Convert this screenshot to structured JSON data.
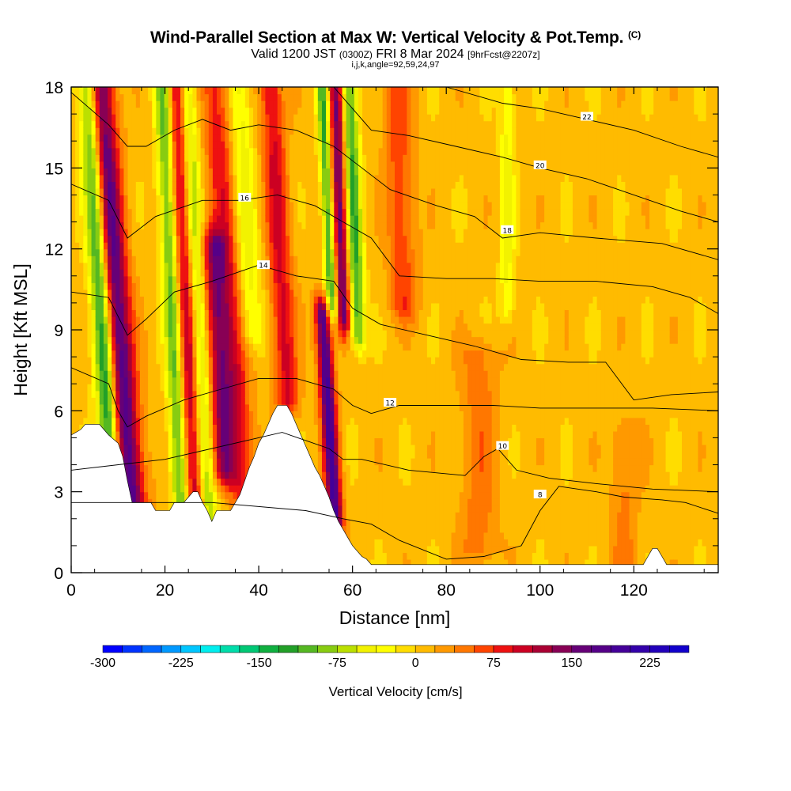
{
  "header": {
    "title": "Wind-Parallel Section at Max W: Vertical Velocity & Pot.Temp.",
    "copyright": "(C)",
    "valid_prefix": "Valid 1200 JST",
    "valid_utc": "(0300Z)",
    "valid_date": "FRI 8 Mar 2024",
    "forecast_info": "[9hrFcst@2207z]",
    "section_params": "i,j,k,angle=92,59,24,97"
  },
  "chart_data": {
    "type": "heatmap",
    "title": "Wind-Parallel Section at Max W: Vertical Velocity & Pot.Temp.",
    "xlabel": "Distance [nm]",
    "ylabel": "Height [Kft MSL]",
    "xlim": [
      0,
      138
    ],
    "ylim": [
      0,
      18
    ],
    "x_ticks": [
      "0",
      "20",
      "40",
      "60",
      "80",
      "100",
      "120"
    ],
    "y_ticks": [
      "0",
      "3",
      "6",
      "9",
      "12",
      "15",
      "18"
    ],
    "colorbar": {
      "title": "Vertical Velocity [cm/s]",
      "min": -300,
      "max": 262.5,
      "step": 18.75,
      "tick_values": [
        -300,
        -225,
        -150,
        -75,
        0,
        75,
        150,
        225
      ],
      "tick_labels": [
        "-300",
        "-225",
        "-150",
        "-75",
        "0",
        "75",
        "150",
        "225"
      ],
      "colors": [
        "#0000ff",
        "#0033ff",
        "#0066ff",
        "#0099ff",
        "#00c6ff",
        "#00eeee",
        "#00ddaa",
        "#00c875",
        "#10b040",
        "#22a028",
        "#55b822",
        "#88cc11",
        "#bbe000",
        "#f2f200",
        "#ffff00",
        "#ffdd00",
        "#ffbb00",
        "#ff9900",
        "#ff7700",
        "#ff4400",
        "#ee1111",
        "#cc0022",
        "#aa0033",
        "#880055",
        "#660077",
        "#550088",
        "#440099",
        "#3300aa",
        "#2200bb",
        "#1100cc"
      ]
    },
    "terrain_kft": [
      [
        0,
        5.1
      ],
      [
        1,
        5.2
      ],
      [
        2,
        5.3
      ],
      [
        3,
        5.5
      ],
      [
        6,
        5.5
      ],
      [
        8,
        5.1
      ],
      [
        10,
        4.8
      ],
      [
        11,
        4.3
      ],
      [
        12,
        3.4
      ],
      [
        13,
        2.6
      ],
      [
        17,
        2.6
      ],
      [
        18,
        2.3
      ],
      [
        21,
        2.3
      ],
      [
        22,
        2.6
      ],
      [
        24,
        2.6
      ],
      [
        25,
        2.8
      ],
      [
        26,
        3.0
      ],
      [
        27,
        3.0
      ],
      [
        28,
        2.6
      ],
      [
        29,
        2.3
      ],
      [
        30,
        1.9
      ],
      [
        31,
        2.3
      ],
      [
        34,
        2.3
      ],
      [
        35,
        2.6
      ],
      [
        36,
        2.9
      ],
      [
        37,
        3.4
      ],
      [
        38,
        3.9
      ],
      [
        39,
        4.3
      ],
      [
        40,
        4.8
      ],
      [
        41,
        5.1
      ],
      [
        42,
        5.5
      ],
      [
        43,
        5.9
      ],
      [
        44,
        6.2
      ],
      [
        46,
        6.2
      ],
      [
        47,
        5.9
      ],
      [
        48,
        5.5
      ],
      [
        49,
        5.1
      ],
      [
        50,
        4.7
      ],
      [
        51,
        4.3
      ],
      [
        52,
        3.9
      ],
      [
        53,
        3.6
      ],
      [
        54,
        3.2
      ],
      [
        55,
        2.8
      ],
      [
        56,
        2.3
      ],
      [
        57,
        1.9
      ],
      [
        58,
        1.6
      ],
      [
        59,
        1.3
      ],
      [
        60,
        1.0
      ],
      [
        61,
        0.8
      ],
      [
        62,
        0.6
      ],
      [
        63,
        0.5
      ],
      [
        64,
        0.3
      ],
      [
        85,
        0.3
      ],
      [
        95,
        0.3
      ],
      [
        122,
        0.3
      ],
      [
        123,
        0.6
      ],
      [
        124,
        0.9
      ],
      [
        125,
        0.9
      ],
      [
        126,
        0.6
      ],
      [
        127,
        0.3
      ],
      [
        138,
        0.3
      ]
    ],
    "updrafts": [
      {
        "x": 14,
        "peak_cms": 180,
        "width_nm": 3.0,
        "tilt": -0.45,
        "zmin": 2.0,
        "zmax": 18
      },
      {
        "x": 27,
        "peak_cms": 110,
        "width_nm": 2.0,
        "tilt": -0.25,
        "zmin": 2.0,
        "zmax": 18
      },
      {
        "x": 34,
        "peak_cms": 120,
        "width_nm": 2.5,
        "tilt": -0.3,
        "zmin": 4.0,
        "zmax": 12
      },
      {
        "x": 38,
        "peak_cms": 80,
        "width_nm": 3.0,
        "tilt": -0.4,
        "zmin": 3.0,
        "zmax": 18
      },
      {
        "x": 48,
        "peak_cms": 90,
        "width_nm": 2.5,
        "tilt": -0.3,
        "zmin": 6.5,
        "zmax": 18
      },
      {
        "x": 57,
        "peak_cms": 190,
        "width_nm": 1.6,
        "tilt": -0.35,
        "zmin": 2.0,
        "zmax": 9.5
      },
      {
        "x": 60,
        "peak_cms": 150,
        "width_nm": 1.4,
        "tilt": -0.2,
        "zmin": 9.5,
        "zmax": 18
      },
      {
        "x": 73,
        "peak_cms": 60,
        "width_nm": 3.0,
        "tilt": -0.2,
        "zmin": 10.0,
        "zmax": 18
      },
      {
        "x": 87,
        "peak_cms": 40,
        "width_nm": 4.0,
        "tilt": 0.0,
        "zmin": 1.0,
        "zmax": 8
      },
      {
        "x": 118,
        "peak_cms": 35,
        "width_nm": 3.0,
        "tilt": 0.0,
        "zmin": 0.5,
        "zmax": 5
      }
    ],
    "downdrafts": [
      {
        "x": 10,
        "peak_cms": -170,
        "width_nm": 2.2,
        "tilt": -0.35,
        "zmin": 4.0,
        "zmax": 18
      },
      {
        "x": 24,
        "peak_cms": -110,
        "width_nm": 1.8,
        "tilt": -0.25,
        "zmin": 2.5,
        "zmax": 18
      },
      {
        "x": 30,
        "peak_cms": -90,
        "width_nm": 1.8,
        "tilt": -0.3,
        "zmin": 2.0,
        "zmax": 18
      },
      {
        "x": 41,
        "peak_cms": -60,
        "width_nm": 2.5,
        "tilt": -0.3,
        "zmin": 9.0,
        "zmax": 18
      },
      {
        "x": 58,
        "peak_cms": -120,
        "width_nm": 1.2,
        "tilt": -0.25,
        "zmin": 10.0,
        "zmax": 18
      },
      {
        "x": 63,
        "peak_cms": -120,
        "width_nm": 1.6,
        "tilt": -0.2,
        "zmin": 9.0,
        "zmax": 18
      },
      {
        "x": 93,
        "peak_cms": -50,
        "width_nm": 1.5,
        "tilt": 0.0,
        "zmin": 10.0,
        "zmax": 18
      }
    ],
    "theta_contours": [
      {
        "label": "8",
        "points": [
          [
            0,
            2.6
          ],
          [
            30,
            2.6
          ],
          [
            50,
            2.3
          ],
          [
            58,
            2.0
          ],
          [
            64,
            1.8
          ],
          [
            70,
            1.2
          ],
          [
            80,
            0.5
          ],
          [
            88,
            0.6
          ],
          [
            96,
            1.0
          ],
          [
            100,
            2.3
          ],
          [
            104,
            3.2
          ],
          [
            112,
            3.0
          ],
          [
            118,
            2.8
          ],
          [
            126,
            2.7
          ],
          [
            131,
            2.6
          ],
          [
            138,
            2.2
          ]
        ],
        "label_at": [
          100,
          2.9
        ]
      },
      {
        "label": "10",
        "points": [
          [
            0,
            3.8
          ],
          [
            20,
            4.2
          ],
          [
            45,
            5.2
          ],
          [
            55,
            4.6
          ],
          [
            58,
            4.2
          ],
          [
            62,
            4.2
          ],
          [
            72,
            3.8
          ],
          [
            84,
            3.6
          ],
          [
            88,
            4.3
          ],
          [
            91,
            4.6
          ],
          [
            95,
            3.8
          ],
          [
            102,
            3.5
          ],
          [
            112,
            3.3
          ],
          [
            124,
            3.1
          ],
          [
            138,
            3.0
          ]
        ],
        "label_at": [
          92,
          4.7
        ]
      },
      {
        "label": "12",
        "points": [
          [
            0,
            7.6
          ],
          [
            8,
            7.0
          ],
          [
            10,
            6.0
          ],
          [
            12,
            5.4
          ],
          [
            16,
            5.8
          ],
          [
            24,
            6.4
          ],
          [
            32,
            6.8
          ],
          [
            40,
            7.2
          ],
          [
            48,
            7.2
          ],
          [
            56,
            6.8
          ],
          [
            60,
            6.2
          ],
          [
            64,
            5.9
          ],
          [
            70,
            6.2
          ],
          [
            80,
            6.2
          ],
          [
            90,
            6.2
          ],
          [
            100,
            6.1
          ],
          [
            110,
            6.1
          ],
          [
            124,
            6.1
          ],
          [
            138,
            6.0
          ]
        ],
        "label_at": [
          68,
          6.3
        ]
      },
      {
        "label": "14",
        "points": [
          [
            0,
            10.4
          ],
          [
            8,
            10.2
          ],
          [
            12,
            8.8
          ],
          [
            16,
            9.4
          ],
          [
            22,
            10.4
          ],
          [
            30,
            10.8
          ],
          [
            40,
            11.4
          ],
          [
            48,
            11.0
          ],
          [
            56,
            10.8
          ],
          [
            60,
            9.8
          ],
          [
            66,
            9.2
          ],
          [
            76,
            8.8
          ],
          [
            86,
            8.4
          ],
          [
            96,
            7.9
          ],
          [
            106,
            7.8
          ],
          [
            114,
            7.8
          ],
          [
            120,
            6.4
          ],
          [
            128,
            6.6
          ],
          [
            138,
            6.7
          ]
        ],
        "label_at": [
          41,
          11.4
        ]
      },
      {
        "label": "16",
        "points": [
          [
            0,
            14.4
          ],
          [
            8,
            13.8
          ],
          [
            12,
            12.4
          ],
          [
            18,
            13.2
          ],
          [
            28,
            13.8
          ],
          [
            36,
            13.8
          ],
          [
            44,
            14.0
          ],
          [
            52,
            13.6
          ],
          [
            58,
            13.0
          ],
          [
            64,
            12.4
          ],
          [
            70,
            11.0
          ],
          [
            80,
            10.9
          ],
          [
            90,
            10.9
          ],
          [
            100,
            10.8
          ],
          [
            112,
            10.8
          ],
          [
            124,
            10.6
          ],
          [
            132,
            10.2
          ],
          [
            138,
            9.6
          ]
        ],
        "label_at": [
          37,
          13.9
        ]
      },
      {
        "label": "18",
        "points": [
          [
            0,
            17.8
          ],
          [
            8,
            16.6
          ],
          [
            12,
            15.8
          ],
          [
            16,
            15.8
          ],
          [
            22,
            16.4
          ],
          [
            28,
            16.8
          ],
          [
            34,
            16.4
          ],
          [
            40,
            16.6
          ],
          [
            48,
            16.4
          ],
          [
            56,
            15.8
          ],
          [
            62,
            15.0
          ],
          [
            68,
            14.2
          ],
          [
            78,
            13.6
          ],
          [
            86,
            13.2
          ],
          [
            92,
            12.4
          ],
          [
            100,
            12.6
          ],
          [
            112,
            12.4
          ],
          [
            126,
            12.2
          ],
          [
            138,
            11.6
          ]
        ],
        "label_at": [
          93,
          12.7
        ]
      },
      {
        "label": "20",
        "points": [
          [
            56,
            18.0
          ],
          [
            60,
            17.2
          ],
          [
            64,
            16.4
          ],
          [
            72,
            16.2
          ],
          [
            82,
            15.8
          ],
          [
            92,
            15.4
          ],
          [
            100,
            15.0
          ],
          [
            110,
            14.6
          ],
          [
            120,
            14.0
          ],
          [
            130,
            13.4
          ],
          [
            138,
            13.0
          ]
        ],
        "label_at": [
          100,
          15.1
        ]
      },
      {
        "label": "22",
        "points": [
          [
            80,
            18.0
          ],
          [
            92,
            17.4
          ],
          [
            100,
            17.2
          ],
          [
            110,
            16.8
          ],
          [
            120,
            16.4
          ],
          [
            130,
            15.8
          ],
          [
            138,
            15.4
          ]
        ],
        "label_at": [
          110,
          16.9
        ]
      }
    ]
  }
}
